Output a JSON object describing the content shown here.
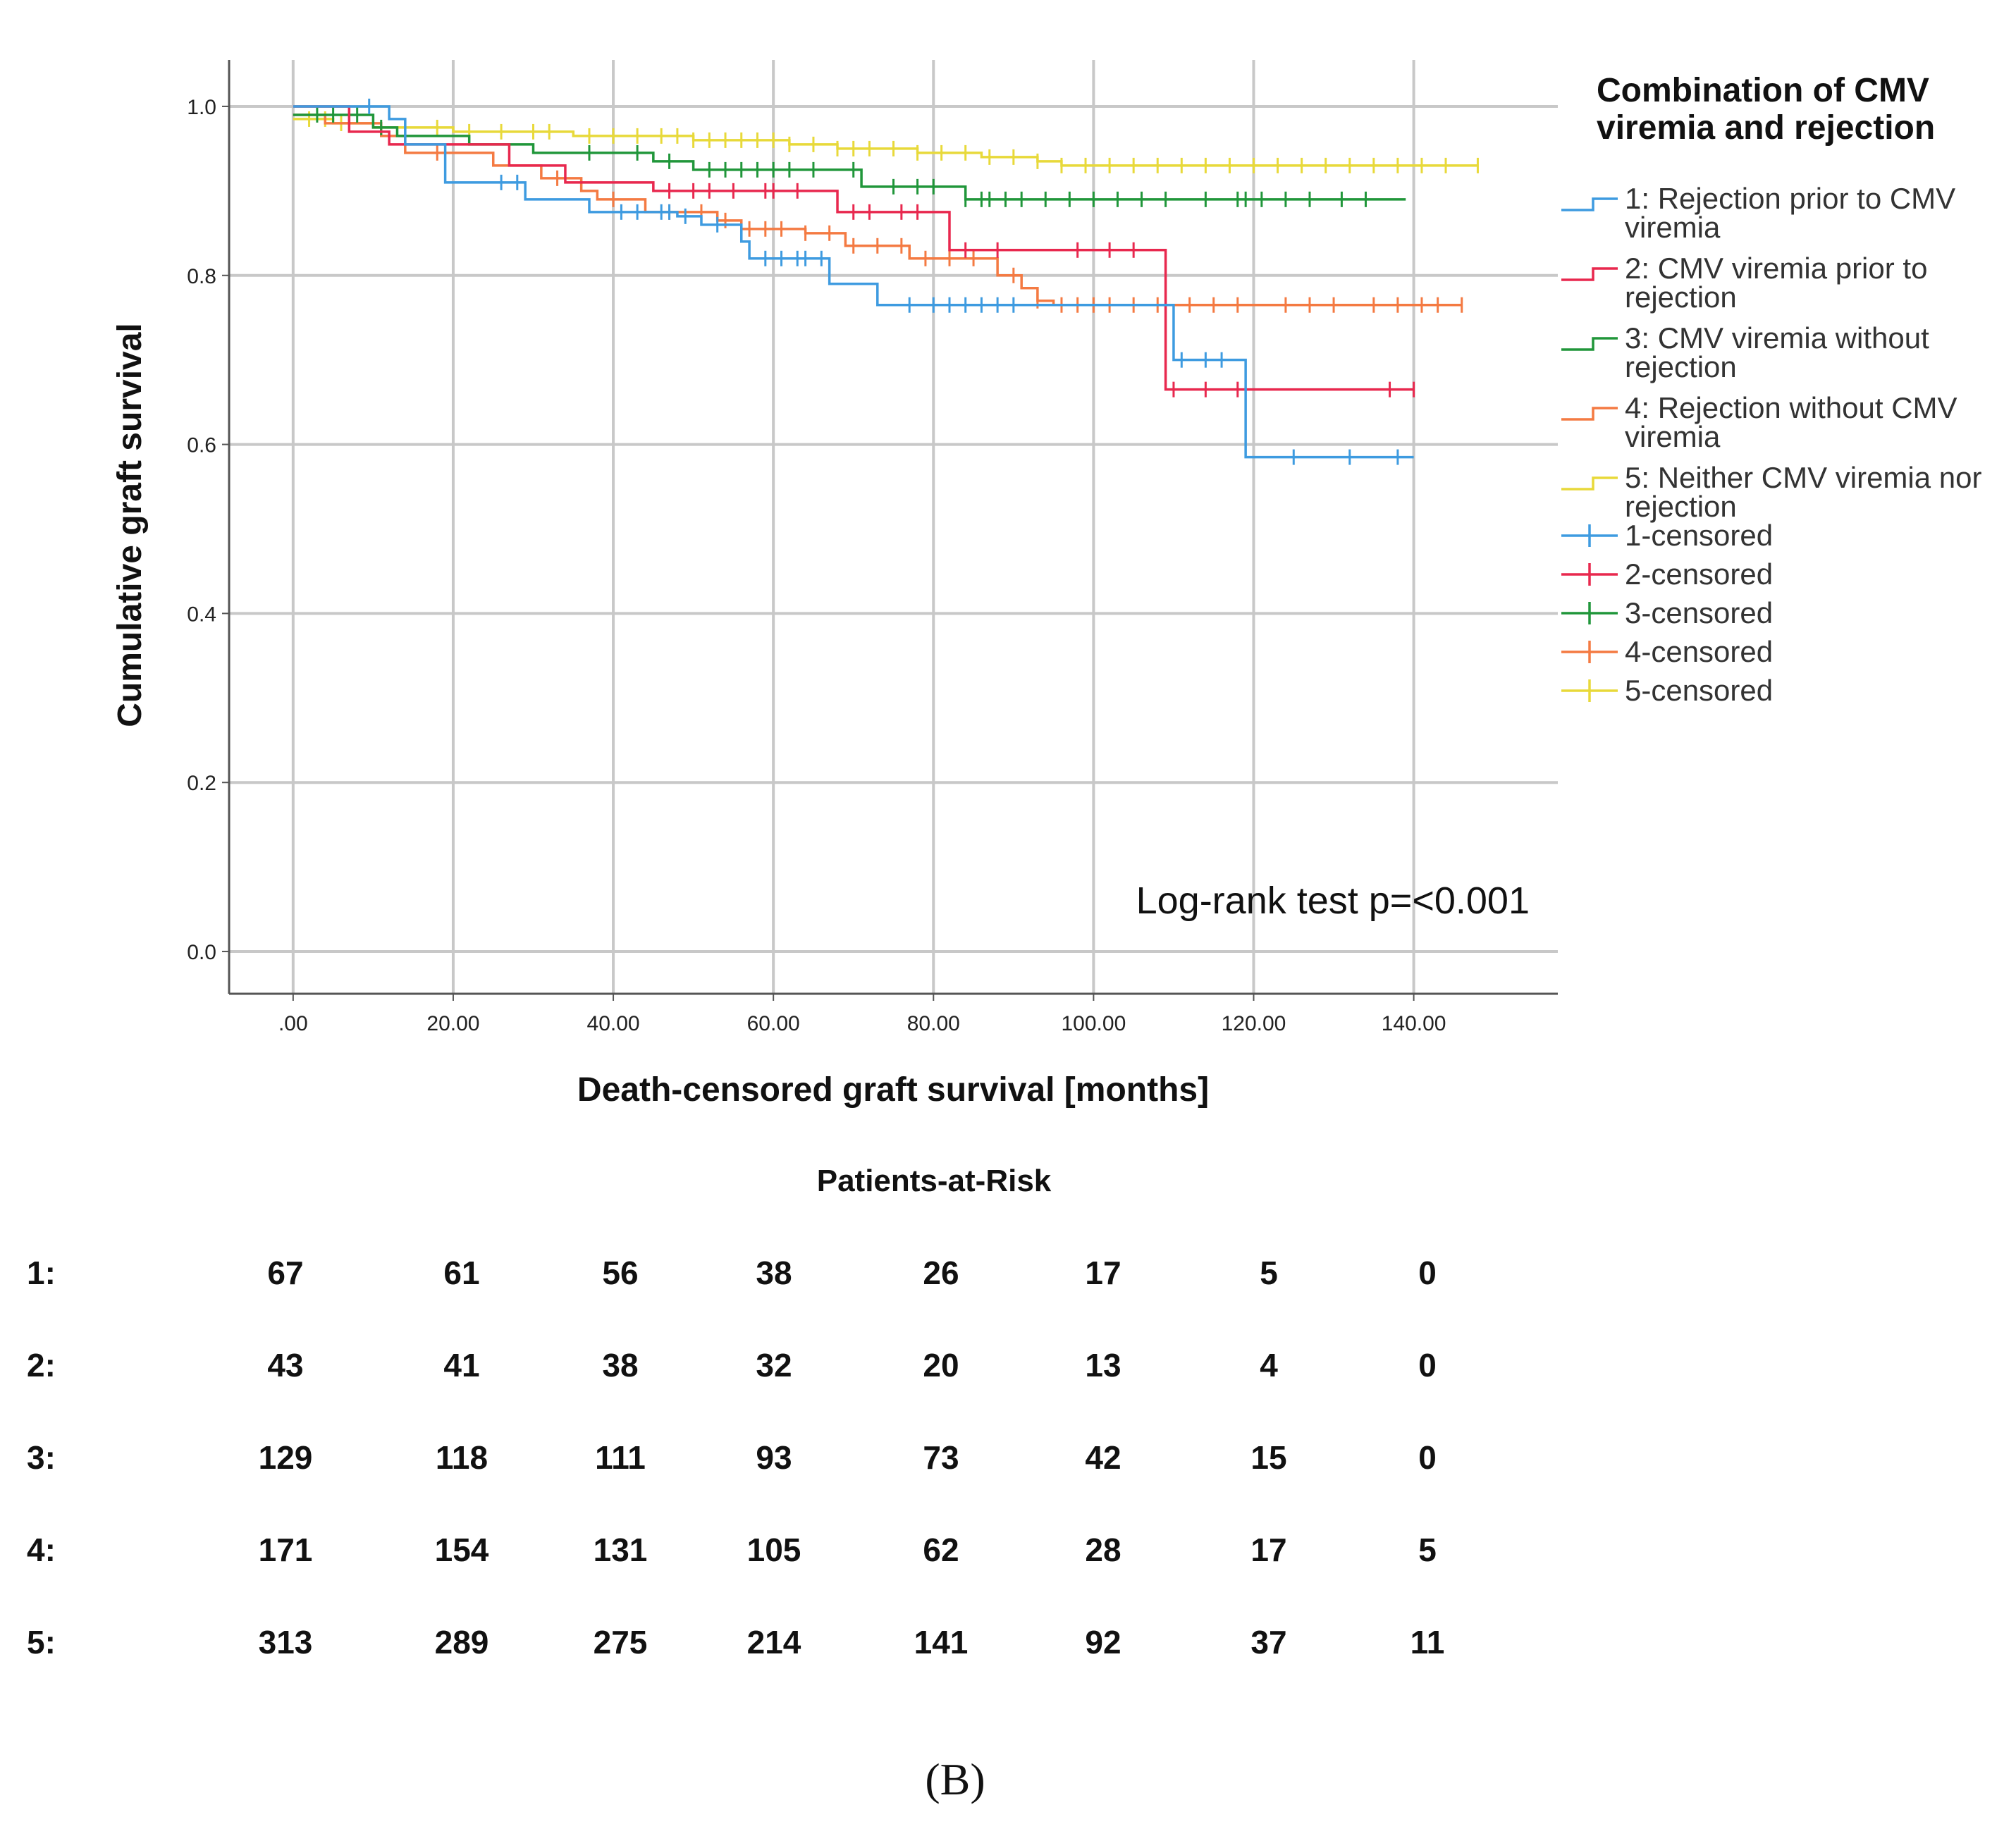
{
  "chart_data": {
    "type": "line",
    "subtype": "kaplan-meier",
    "xlabel": "Death-censored graft survival [months]",
    "ylabel": "Cumulative graft survival",
    "xlim": [
      -8,
      158
    ],
    "ylim": [
      -0.05,
      1.055
    ],
    "x_ticks": [
      0,
      20,
      40,
      60,
      80,
      100,
      120,
      140
    ],
    "x_tick_labels": [
      ".00",
      "20.00",
      "40.00",
      "60.00",
      "80.00",
      "100.00",
      "120.00",
      "140.00"
    ],
    "y_ticks": [
      0,
      0.2,
      0.4,
      0.6,
      0.8,
      1.0
    ],
    "y_tick_labels": [
      "0.0",
      "0.2",
      "0.4",
      "0.6",
      "0.8",
      "1.0"
    ],
    "grid": true,
    "legend_title": "Combination of CMV viremia and rejection",
    "legend_title_lines": [
      "Combination of CMV",
      "viremia and rejection"
    ],
    "legend_position": "right",
    "annotation": "Log-rank test p=<0.001",
    "series": [
      {
        "name": "1: Rejection prior to CMV viremia",
        "label_lines": [
          "1: Rejection prior to CMV",
          "viremia"
        ],
        "censored_label": "1-censored",
        "color": "#3e9be0",
        "steps": [
          [
            0,
            1.0
          ],
          [
            12,
            0.985
          ],
          [
            14,
            0.955
          ],
          [
            19,
            0.91
          ],
          [
            29,
            0.89
          ],
          [
            37,
            0.875
          ],
          [
            48,
            0.87
          ],
          [
            51,
            0.86
          ],
          [
            56,
            0.84
          ],
          [
            57,
            0.82
          ],
          [
            67,
            0.79
          ],
          [
            73,
            0.765
          ],
          [
            110,
            0.7
          ],
          [
            119,
            0.585
          ],
          [
            140,
            0.585
          ]
        ],
        "censored": [
          9.5,
          26,
          28,
          41,
          43,
          46,
          47,
          49,
          53,
          59,
          61,
          63,
          64,
          66,
          77,
          80,
          82,
          84,
          86,
          88,
          90,
          111,
          114,
          116,
          125,
          132,
          138
        ]
      },
      {
        "name": "2: CMV viremia prior to rejection",
        "label_lines": [
          "2: CMV viremia prior to",
          "rejection"
        ],
        "censored_label": "2-censored",
        "color": "#e8284e",
        "steps": [
          [
            0,
            1.0
          ],
          [
            7,
            0.97
          ],
          [
            12,
            0.955
          ],
          [
            27,
            0.93
          ],
          [
            34,
            0.91
          ],
          [
            45,
            0.9
          ],
          [
            68,
            0.875
          ],
          [
            82,
            0.83
          ],
          [
            109,
            0.665
          ],
          [
            140,
            0.665
          ]
        ],
        "censored": [
          47,
          50,
          52,
          55,
          59,
          60,
          63,
          70,
          72,
          76,
          78,
          84,
          88,
          98,
          102,
          105,
          110,
          114,
          118,
          137,
          140
        ]
      },
      {
        "name": "3: CMV viremia without rejection",
        "label_lines": [
          "3: CMV viremia without",
          "rejection"
        ],
        "censored_label": "3-censored",
        "color": "#20963a",
        "steps": [
          [
            0,
            0.99
          ],
          [
            10,
            0.975
          ],
          [
            13,
            0.965
          ],
          [
            22,
            0.955
          ],
          [
            30,
            0.945
          ],
          [
            45,
            0.935
          ],
          [
            50,
            0.925
          ],
          [
            71,
            0.905
          ],
          [
            84,
            0.89
          ],
          [
            139,
            0.89
          ]
        ],
        "censored": [
          3,
          5,
          7,
          8,
          11,
          37,
          43,
          47,
          52,
          54,
          56,
          58,
          60,
          62,
          65,
          70,
          75,
          78,
          80,
          84,
          86,
          87,
          89,
          91,
          94,
          97,
          100,
          103,
          106,
          109,
          114,
          118,
          119,
          121,
          124,
          127,
          131,
          134
        ]
      },
      {
        "name": "4: Rejection without CMV viremia",
        "label_lines": [
          "4: Rejection without CMV",
          "viremia"
        ],
        "censored_label": "4-censored",
        "color": "#f47a42",
        "steps": [
          [
            0,
            0.99
          ],
          [
            4,
            0.98
          ],
          [
            11,
            0.965
          ],
          [
            14,
            0.945
          ],
          [
            25,
            0.93
          ],
          [
            31,
            0.915
          ],
          [
            36,
            0.9
          ],
          [
            38,
            0.89
          ],
          [
            44,
            0.875
          ],
          [
            53,
            0.865
          ],
          [
            56,
            0.855
          ],
          [
            64,
            0.85
          ],
          [
            69,
            0.835
          ],
          [
            77,
            0.82
          ],
          [
            88,
            0.8
          ],
          [
            91,
            0.785
          ],
          [
            93,
            0.77
          ],
          [
            95,
            0.765
          ],
          [
            146,
            0.765
          ]
        ],
        "censored": [
          18,
          33,
          40,
          47,
          51,
          54,
          57,
          59,
          61,
          64,
          67,
          70,
          73,
          76,
          79,
          82,
          85,
          90,
          93,
          96,
          98,
          100,
          102,
          105,
          108,
          112,
          115,
          118,
          124,
          127,
          130,
          135,
          138,
          141,
          143,
          146
        ]
      },
      {
        "name": "5: Neither CMV viremia nor rejection",
        "label_lines": [
          "5: Neither CMV viremia nor",
          "rejection"
        ],
        "censored_label": "5-censored",
        "color": "#e8d93a",
        "steps": [
          [
            0,
            0.985
          ],
          [
            5,
            0.98
          ],
          [
            10,
            0.975
          ],
          [
            20,
            0.97
          ],
          [
            35,
            0.965
          ],
          [
            50,
            0.96
          ],
          [
            62,
            0.955
          ],
          [
            68,
            0.95
          ],
          [
            78,
            0.945
          ],
          [
            86,
            0.94
          ],
          [
            93,
            0.935
          ],
          [
            96,
            0.93
          ],
          [
            148,
            0.93
          ]
        ],
        "censored": [
          2,
          4,
          6,
          18,
          22,
          26,
          30,
          32,
          37,
          40,
          43,
          46,
          48,
          50,
          52,
          54,
          56,
          58,
          60,
          62,
          65,
          68,
          70,
          72,
          75,
          78,
          81,
          84,
          87,
          90,
          93,
          96,
          99,
          102,
          105,
          108,
          111,
          114,
          117,
          120,
          123,
          126,
          129,
          132,
          135,
          138,
          141,
          144,
          148
        ]
      }
    ]
  },
  "risk_table": {
    "title": "Patients-at-Risk",
    "rows": [
      {
        "label": "1:",
        "values": [
          "67",
          "61",
          "56",
          "38",
          "26",
          "17",
          "5",
          "0"
        ]
      },
      {
        "label": "2:",
        "values": [
          "43",
          "41",
          "38",
          "32",
          "20",
          "13",
          "4",
          "0"
        ]
      },
      {
        "label": "3:",
        "values": [
          "129",
          "118",
          "111",
          "93",
          "73",
          "42",
          "15",
          "0"
        ]
      },
      {
        "label": "4:",
        "values": [
          "171",
          "154",
          "131",
          "105",
          "62",
          "28",
          "17",
          "5"
        ]
      },
      {
        "label": "5:",
        "values": [
          "313",
          "289",
          "275",
          "214",
          "141",
          "92",
          "37",
          "11"
        ]
      }
    ]
  },
  "panel_label": "(B)"
}
